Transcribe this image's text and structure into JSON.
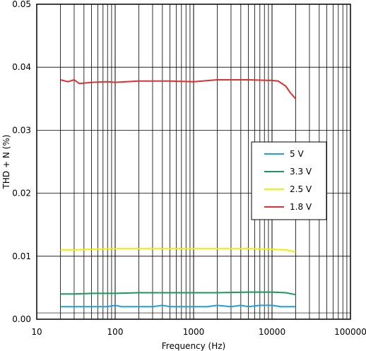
{
  "chart_data": {
    "type": "line",
    "title": "",
    "xlabel": "Frequency (Hz)",
    "ylabel": "THD + N (%)",
    "xscale": "log",
    "xlim": [
      10,
      100000
    ],
    "ylim": [
      0,
      0.05
    ],
    "x_ticks": [
      "10",
      "100",
      "1000",
      "10000",
      "100000"
    ],
    "y_ticks": [
      "0.00",
      "0.01",
      "0.02",
      "0.03",
      "0.04",
      "0.05"
    ],
    "grid": true,
    "legend_position": "right",
    "series": [
      {
        "name": "5 V",
        "color": "#1f9fe0",
        "x": [
          20,
          30,
          50,
          80,
          100,
          120,
          150,
          200,
          300,
          400,
          500,
          700,
          1000,
          1500,
          2000,
          3000,
          4000,
          5000,
          7000,
          10000,
          13000,
          15000,
          20000
        ],
        "y": [
          0.002,
          0.002,
          0.002,
          0.002,
          0.0022,
          0.002,
          0.002,
          0.002,
          0.002,
          0.0022,
          0.002,
          0.002,
          0.002,
          0.002,
          0.0022,
          0.002,
          0.0022,
          0.002,
          0.0022,
          0.0022,
          0.002,
          0.002,
          0.002
        ]
      },
      {
        "name": "3.3 V",
        "color": "#1a9a5a",
        "x": [
          20,
          30,
          50,
          100,
          200,
          500,
          1000,
          2000,
          5000,
          10000,
          15000,
          20000
        ],
        "y": [
          0.004,
          0.004,
          0.0041,
          0.0041,
          0.0042,
          0.0042,
          0.0042,
          0.0042,
          0.0043,
          0.0043,
          0.0042,
          0.0039
        ]
      },
      {
        "name": "2.5 V",
        "color": "#f0f000",
        "x": [
          20,
          30,
          50,
          100,
          200,
          500,
          1000,
          2000,
          5000,
          10000,
          15000,
          20000
        ],
        "y": [
          0.011,
          0.011,
          0.0111,
          0.0112,
          0.0112,
          0.0112,
          0.0112,
          0.0112,
          0.0112,
          0.0111,
          0.011,
          0.0107
        ]
      },
      {
        "name": "1.8 V",
        "color": "#e03030",
        "x": [
          20,
          25,
          30,
          35,
          50,
          80,
          100,
          200,
          500,
          1000,
          2000,
          5000,
          10000,
          12000,
          15000,
          17000,
          20000
        ],
        "y": [
          0.038,
          0.0377,
          0.038,
          0.0374,
          0.0376,
          0.0377,
          0.0376,
          0.0378,
          0.0378,
          0.0377,
          0.038,
          0.038,
          0.0379,
          0.0378,
          0.037,
          0.036,
          0.035
        ]
      }
    ]
  }
}
